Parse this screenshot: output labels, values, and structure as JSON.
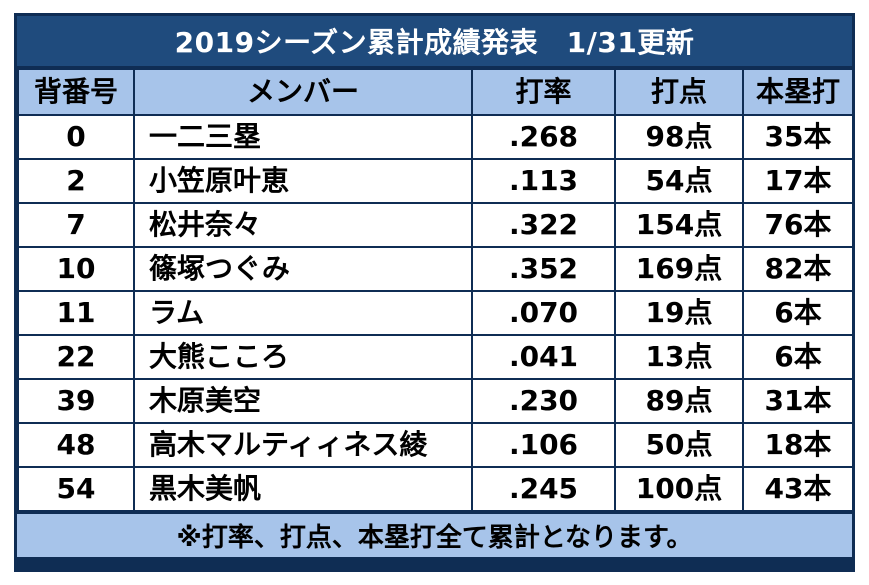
{
  "title": "2019シーズン累計成績発表　1/31更新",
  "headers": {
    "number": "背番号",
    "member": "メンバー",
    "avg": "打率",
    "rbi": "打点",
    "hr": "本塁打"
  },
  "rows": [
    {
      "number": "0",
      "name": "一二三塁",
      "avg": ".268",
      "rbi": "98点",
      "hr": "35本"
    },
    {
      "number": "2",
      "name": "小笠原叶恵",
      "avg": ".113",
      "rbi": "54点",
      "hr": "17本"
    },
    {
      "number": "7",
      "name": "松井奈々",
      "avg": ".322",
      "rbi": "154点",
      "hr": "76本"
    },
    {
      "number": "10",
      "name": "篠塚つぐみ",
      "avg": ".352",
      "rbi": "169点",
      "hr": "82本"
    },
    {
      "number": "11",
      "name": "ラム",
      "avg": ".070",
      "rbi": "19点",
      "hr": "6本"
    },
    {
      "number": "22",
      "name": "大熊こころ",
      "avg": ".041",
      "rbi": "13点",
      "hr": "6本"
    },
    {
      "number": "39",
      "name": "木原美空",
      "avg": ".230",
      "rbi": "89点",
      "hr": "31本"
    },
    {
      "number": "48",
      "name": "高木マルティィネス綾",
      "avg": ".106",
      "rbi": "50点",
      "hr": "18本"
    },
    {
      "number": "54",
      "name": "黒木美帆",
      "avg": ".245",
      "rbi": "100点",
      "hr": "43本"
    }
  ],
  "footer": "※打率、打点、本塁打全て累計となります。",
  "colors": {
    "border": "#0f2d54",
    "title_bg": "#1f4b7d",
    "header_bg": "#a7c4ea",
    "footer_bg": "#a7c4ea"
  }
}
